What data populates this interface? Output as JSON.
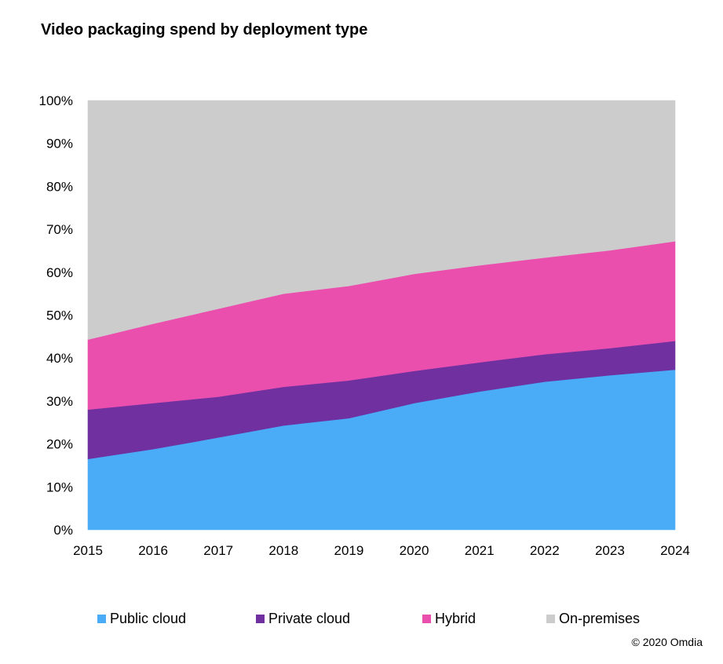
{
  "chart_data": {
    "type": "area",
    "stacked": true,
    "percent": true,
    "title": "Video packaging spend by deployment type",
    "xlabel": "",
    "ylabel": "",
    "ylim": [
      0,
      100
    ],
    "y_ticks": [
      "0%",
      "10%",
      "20%",
      "30%",
      "40%",
      "50%",
      "60%",
      "70%",
      "80%",
      "90%",
      "100%"
    ],
    "categories": [
      "2015",
      "2016",
      "2017",
      "2018",
      "2019",
      "2020",
      "2021",
      "2022",
      "2023",
      "2024"
    ],
    "series": [
      {
        "name": "Public cloud",
        "color": "#4aabf7",
        "values": [
          16.5,
          18.8,
          21.5,
          24.3,
          26.0,
          29.5,
          32.2,
          34.5,
          36.0,
          37.3
        ]
      },
      {
        "name": "Private cloud",
        "color": "#7030a0",
        "values": [
          11.5,
          10.7,
          9.5,
          9.0,
          8.8,
          7.5,
          6.8,
          6.4,
          6.3,
          6.7
        ]
      },
      {
        "name": "Hybrid",
        "color": "#ea4fae",
        "values": [
          16.3,
          18.5,
          20.5,
          21.7,
          22.0,
          22.6,
          22.6,
          22.5,
          22.8,
          23.2
        ]
      },
      {
        "name": "On-premises",
        "color": "#cccccc",
        "values": [
          55.7,
          52.0,
          48.5,
          45.0,
          43.2,
          40.4,
          38.4,
          36.6,
          34.9,
          32.8
        ]
      }
    ],
    "grid": false,
    "legend_position": "bottom"
  },
  "legend": {
    "items": [
      {
        "label": "Public cloud",
        "color": "#4aabf7"
      },
      {
        "label": "Private cloud",
        "color": "#7030a0"
      },
      {
        "label": "Hybrid",
        "color": "#ea4fae"
      },
      {
        "label": "On-premises",
        "color": "#cccccc"
      }
    ]
  },
  "footer": {
    "copyright": "© 2020 Omdia"
  }
}
